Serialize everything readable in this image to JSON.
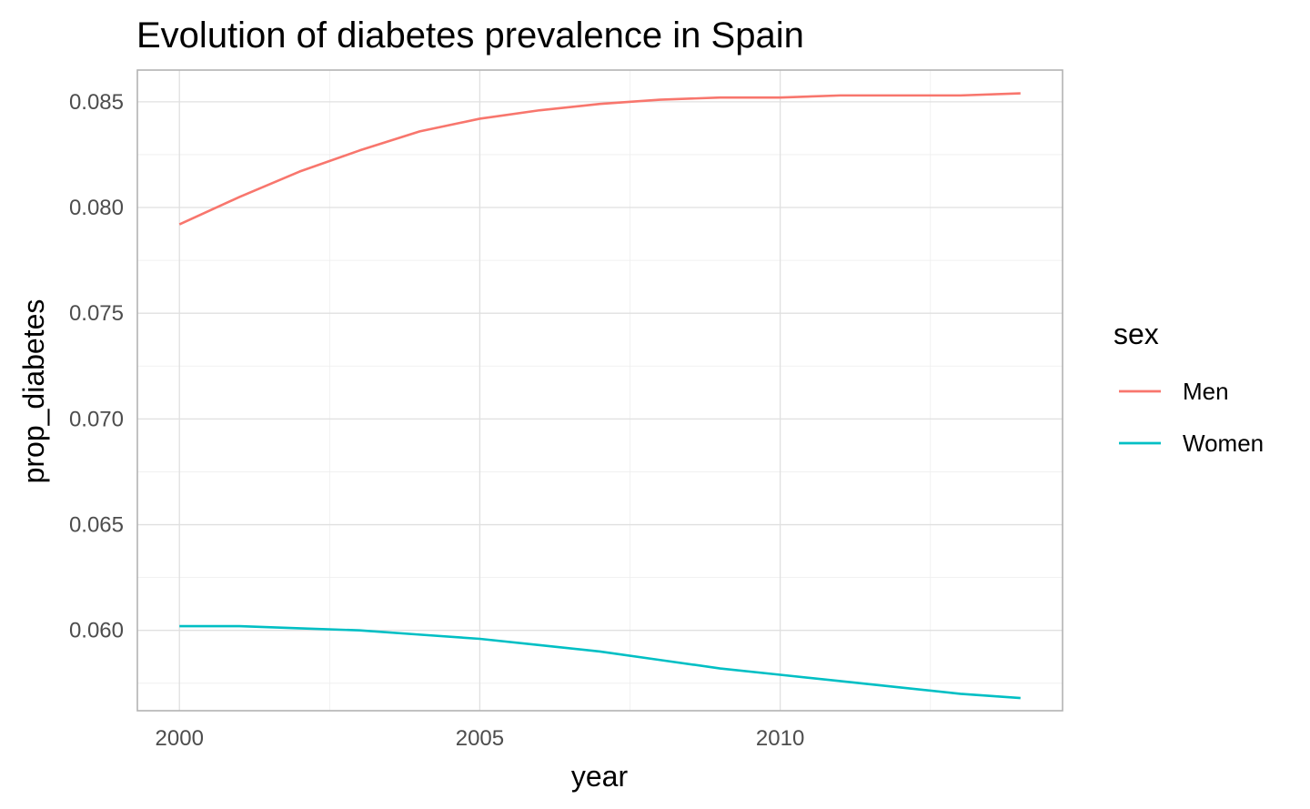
{
  "chart_data": {
    "type": "line",
    "title": "Evolution of diabetes prevalence in Spain",
    "xlabel": "year",
    "ylabel": "prop_diabetes",
    "xlim": [
      1999.3,
      2014.7
    ],
    "ylim": [
      0.0562,
      0.0865
    ],
    "x_ticks": [
      2000,
      2005,
      2010
    ],
    "x_tick_labels": [
      "2000",
      "2005",
      "2010"
    ],
    "y_ticks": [
      0.06,
      0.065,
      0.07,
      0.075,
      0.08,
      0.085
    ],
    "y_tick_labels": [
      "0.060",
      "0.065",
      "0.070",
      "0.075",
      "0.080",
      "0.085"
    ],
    "grid": true,
    "legend": {
      "title": "sex",
      "position": "right"
    },
    "x": [
      2000,
      2001,
      2002,
      2003,
      2004,
      2005,
      2006,
      2007,
      2008,
      2009,
      2010,
      2011,
      2012,
      2013,
      2014
    ],
    "series": [
      {
        "name": "Men",
        "color": "#F8766D",
        "values": [
          0.0792,
          0.0805,
          0.0817,
          0.0827,
          0.0836,
          0.0842,
          0.0846,
          0.0849,
          0.0851,
          0.0852,
          0.0852,
          0.0853,
          0.0853,
          0.0853,
          0.0854
        ]
      },
      {
        "name": "Women",
        "color": "#00BFC4",
        "values": [
          0.0602,
          0.0602,
          0.0601,
          0.06,
          0.0598,
          0.0596,
          0.0593,
          0.059,
          0.0586,
          0.0582,
          0.0579,
          0.0576,
          0.0573,
          0.057,
          0.0568
        ]
      }
    ]
  }
}
